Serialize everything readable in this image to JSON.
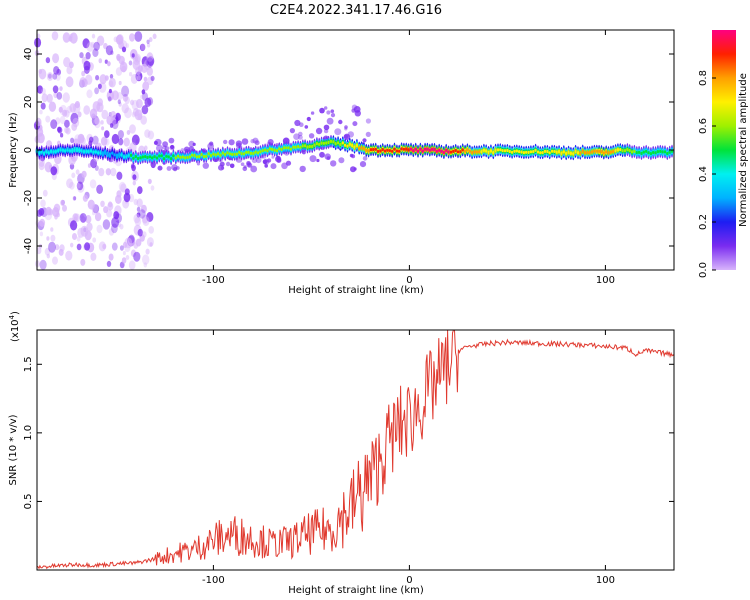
{
  "figure_title": "C2E4.2022.341.17.46.G16",
  "colors": {
    "snr_line": "#e03a2f",
    "spectrogram_core": "#ff2a2a",
    "spectrogram_halo": "#b88cf0",
    "colorbar_stops": [
      "#d8b4fb",
      "#7a2cf0",
      "#1d1df2",
      "#00b2ff",
      "#00f0f0",
      "#00e33a",
      "#9ff000",
      "#fff000",
      "#ffa000",
      "#ff2000",
      "#ff0080"
    ]
  },
  "chart_data": [
    {
      "type": "heatmap",
      "title": "",
      "xlabel": "Height of straight line (km)",
      "ylabel": "Frequency (Hz)",
      "xlim": [
        -190,
        135
      ],
      "ylim": [
        -50,
        50
      ],
      "xticks": [
        -100,
        0,
        100
      ],
      "yticks": [
        -40,
        -20,
        0,
        20,
        40
      ],
      "xtick_labels": [
        "-100",
        "0",
        "100"
      ],
      "ytick_labels": [
        "-40",
        "-20",
        "0",
        "20",
        "40"
      ],
      "colorbar": {
        "label": "Normalized spectral amplitude",
        "range": [
          0.0,
          1.0
        ],
        "ticks": [
          0.0,
          0.2,
          0.4,
          0.6,
          0.8
        ],
        "tick_labels": [
          "0.0",
          "0.2",
          "0.4",
          "0.6",
          "0.8"
        ]
      },
      "ridge": {
        "x": [
          -190,
          -170,
          -150,
          -140,
          -120,
          -100,
          -80,
          -60,
          -40,
          -30,
          -20,
          -10,
          0,
          20,
          40,
          60,
          80,
          100,
          110,
          120,
          135
        ],
        "freq": [
          -1,
          0,
          -2,
          -3,
          -3,
          -2,
          -1,
          1,
          3,
          2,
          0,
          0,
          0,
          -0.5,
          -0.5,
          -0.5,
          -1,
          -1,
          0,
          -1,
          -1
        ],
        "amplitude": [
          0.35,
          0.45,
          0.3,
          0.5,
          0.55,
          0.55,
          0.55,
          0.55,
          0.6,
          0.7,
          0.85,
          0.9,
          0.95,
          0.95,
          0.7,
          0.65,
          0.7,
          0.85,
          0.6,
          0.5,
          0.5
        ]
      },
      "grid": false
    },
    {
      "type": "line",
      "title": "",
      "xlabel": "Height of straight line (km)",
      "ylabel": "SNR (10 * v/v)",
      "y_multiplier": "(x10^4)",
      "y_multiplier_base": "(x10",
      "y_multiplier_exp": "4",
      "y_multiplier_close": ")",
      "xlim": [
        -190,
        135
      ],
      "ylim": [
        0,
        17500
      ],
      "xticks": [
        -100,
        0,
        100
      ],
      "yticks": [
        5000,
        10000,
        15000
      ],
      "xtick_labels": [
        "-100",
        "0",
        "100"
      ],
      "ytick_labels": [
        "0.5",
        "1.0",
        "1.5"
      ],
      "series": [
        {
          "x": [
            -190,
            -180,
            -170,
            -160,
            -150,
            -140,
            -130,
            -120,
            -110,
            -100,
            -90,
            -80,
            -70,
            -60,
            -50,
            -40,
            -35,
            -30,
            -25,
            -20,
            -15,
            -10,
            -5,
            0,
            5,
            10,
            15,
            20,
            25,
            30,
            40,
            50,
            60,
            70,
            80,
            90,
            100,
            110,
            113,
            116,
            120,
            130,
            135
          ],
          "values": [
            200,
            300,
            400,
            350,
            450,
            500,
            800,
            1200,
            1500,
            2200,
            2600,
            2300,
            1900,
            2100,
            2700,
            3000,
            3800,
            4500,
            5500,
            6500,
            8000,
            9500,
            10500,
            11000,
            12000,
            13000,
            14000,
            15000,
            16000,
            16300,
            16500,
            16600,
            16550,
            16500,
            16450,
            16400,
            16300,
            16200,
            16000,
            15700,
            16000,
            15800,
            15700
          ]
        }
      ],
      "grid": false
    }
  ]
}
